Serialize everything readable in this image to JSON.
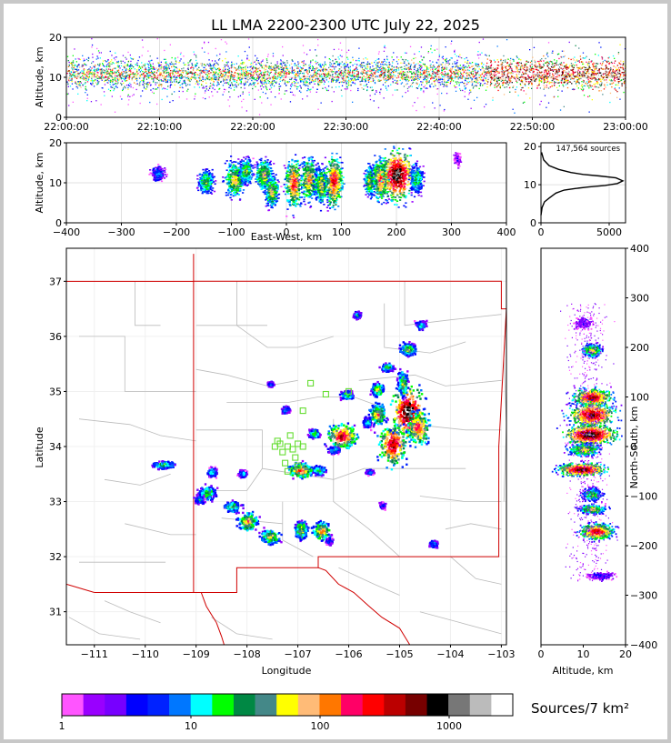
{
  "title": "LL LMA 2200-2300 UTC July 22, 2025",
  "colorbar_label": "Sources/7 km²",
  "colors": {
    "colorbar": [
      "#ff55ff",
      "#9900ff",
      "#7700ff",
      "#0000ff",
      "#0022ff",
      "#0077ff",
      "#00ffff",
      "#00ff00",
      "#008844",
      "#448888",
      "#ffff00",
      "#ffbb77",
      "#ff7700",
      "#ff0066",
      "#ff0000",
      "#bb0000",
      "#770000",
      "#000000",
      "#777777",
      "#bbbbbb",
      "#ffffff"
    ],
    "map_boundary": "#d00000",
    "county": "#bbbbbb",
    "station": "#66dd33"
  },
  "chart_data": [
    {
      "id": "time-height",
      "type": "scatter",
      "xlabel": "",
      "ylabel": "Altitude, km",
      "xticks": [
        "22:00:00",
        "22:10:00",
        "22:20:00",
        "22:30:00",
        "22:40:00",
        "22:50:00",
        "23:00:00"
      ],
      "xlim_minutes": [
        0,
        60
      ],
      "ylim": [
        0,
        20
      ],
      "yticks": [
        0,
        10,
        20
      ],
      "grid": true
    },
    {
      "id": "ew-altitude",
      "type": "heatmap",
      "xlabel": "East-West, km",
      "ylabel": "Altitude, km",
      "xlim": [
        -400,
        400
      ],
      "xticks": [
        -400,
        -300,
        -200,
        -100,
        0,
        100,
        200,
        300,
        400
      ],
      "ylim": [
        0,
        20
      ],
      "yticks": [
        0,
        10,
        20
      ],
      "cells": [
        {
          "x": -235,
          "y": 12.5,
          "sx": 8,
          "sy": 1.2,
          "w": 0.3
        },
        {
          "x": -148,
          "y": 10.5,
          "sx": 10,
          "sy": 2,
          "w": 0.5
        },
        {
          "x": -95,
          "y": 11,
          "sx": 12,
          "sy": 3,
          "w": 0.6
        },
        {
          "x": -75,
          "y": 13,
          "sx": 8,
          "sy": 2,
          "w": 0.55
        },
        {
          "x": -42,
          "y": 12,
          "sx": 10,
          "sy": 2.5,
          "w": 0.6
        },
        {
          "x": -28,
          "y": 8,
          "sx": 8,
          "sy": 2.5,
          "w": 0.6
        },
        {
          "x": 12,
          "y": 10,
          "sx": 10,
          "sy": 4,
          "w": 0.75
        },
        {
          "x": 40,
          "y": 11,
          "sx": 10,
          "sy": 3.5,
          "w": 0.65
        },
        {
          "x": 62,
          "y": 9.5,
          "sx": 8,
          "sy": 3,
          "w": 0.6
        },
        {
          "x": 85,
          "y": 10.5,
          "sx": 10,
          "sy": 4,
          "w": 0.8
        },
        {
          "x": 150,
          "y": 10.5,
          "sx": 6,
          "sy": 2.5,
          "w": 0.55
        },
        {
          "x": 170,
          "y": 11,
          "sx": 10,
          "sy": 3.5,
          "w": 0.7
        },
        {
          "x": 200,
          "y": 12,
          "sx": 18,
          "sy": 4,
          "w": 1.0
        },
        {
          "x": 235,
          "y": 11,
          "sx": 8,
          "sy": 2.5,
          "w": 0.45
        },
        {
          "x": 310,
          "y": 16,
          "sx": 4,
          "sy": 1,
          "w": 0.12
        }
      ]
    },
    {
      "id": "altitude-histogram",
      "type": "line",
      "annotation": "147,564 sources",
      "xlim": [
        0,
        6200
      ],
      "xticks": [
        0,
        5000
      ],
      "ylim": [
        0,
        21
      ],
      "yticks": [
        0,
        10,
        20
      ],
      "x": [
        0,
        80,
        250,
        600,
        900,
        1100,
        1400,
        1700,
        2500,
        3500,
        4700,
        5600,
        6000,
        5500,
        4300,
        3100,
        2200,
        1300,
        600,
        200,
        40
      ],
      "y": [
        2.0,
        4.0,
        5.5,
        6.5,
        7.3,
        7.8,
        8.2,
        8.6,
        9.0,
        9.4,
        9.8,
        10.3,
        11.0,
        11.8,
        12.3,
        12.7,
        13.2,
        14.0,
        15.0,
        16.5,
        18.5
      ]
    },
    {
      "id": "plan-view",
      "type": "heatmap",
      "xlabel": "Longitude",
      "ylabel": "Latitude",
      "xlim": [
        -111.55,
        -102.9
      ],
      "xticks": [
        -111,
        -110,
        -109,
        -108,
        -107,
        -106,
        -105,
        -104,
        -103
      ],
      "ylim": [
        30.4,
        37.6
      ],
      "yticks": [
        31,
        32,
        33,
        34,
        35,
        36,
        37
      ],
      "cells": [
        {
          "x": -109.65,
          "y": 33.68,
          "sx": 0.15,
          "sy": 0.04,
          "w": 0.45
        },
        {
          "x": -108.8,
          "y": 33.18,
          "sx": 0.1,
          "sy": 0.08,
          "w": 0.5
        },
        {
          "x": -108.95,
          "y": 33.05,
          "sx": 0.06,
          "sy": 0.05,
          "w": 0.35
        },
        {
          "x": -108.3,
          "y": 32.92,
          "sx": 0.1,
          "sy": 0.06,
          "w": 0.5
        },
        {
          "x": -108.0,
          "y": 32.65,
          "sx": 0.12,
          "sy": 0.1,
          "w": 0.65
        },
        {
          "x": -107.55,
          "y": 32.38,
          "sx": 0.12,
          "sy": 0.08,
          "w": 0.6
        },
        {
          "x": -106.95,
          "y": 32.5,
          "sx": 0.08,
          "sy": 0.1,
          "w": 0.6
        },
        {
          "x": -106.55,
          "y": 32.48,
          "sx": 0.1,
          "sy": 0.1,
          "w": 0.7
        },
        {
          "x": -106.95,
          "y": 33.58,
          "sx": 0.15,
          "sy": 0.08,
          "w": 0.75
        },
        {
          "x": -106.6,
          "y": 33.58,
          "sx": 0.08,
          "sy": 0.05,
          "w": 0.5
        },
        {
          "x": -106.3,
          "y": 33.95,
          "sx": 0.07,
          "sy": 0.04,
          "w": 0.4
        },
        {
          "x": -106.7,
          "y": 34.25,
          "sx": 0.06,
          "sy": 0.05,
          "w": 0.5
        },
        {
          "x": -106.15,
          "y": 34.2,
          "sx": 0.18,
          "sy": 0.13,
          "w": 0.85
        },
        {
          "x": -106.05,
          "y": 34.95,
          "sx": 0.08,
          "sy": 0.05,
          "w": 0.45
        },
        {
          "x": -105.65,
          "y": 34.45,
          "sx": 0.05,
          "sy": 0.06,
          "w": 0.4
        },
        {
          "x": -105.45,
          "y": 34.6,
          "sx": 0.1,
          "sy": 0.12,
          "w": 0.65
        },
        {
          "x": -105.45,
          "y": 35.05,
          "sx": 0.07,
          "sy": 0.07,
          "w": 0.6
        },
        {
          "x": -105.15,
          "y": 34.05,
          "sx": 0.18,
          "sy": 0.25,
          "w": 0.85
        },
        {
          "x": -104.85,
          "y": 34.65,
          "sx": 0.2,
          "sy": 0.3,
          "w": 1.0
        },
        {
          "x": -104.65,
          "y": 34.35,
          "sx": 0.15,
          "sy": 0.2,
          "w": 0.75
        },
        {
          "x": -104.95,
          "y": 35.15,
          "sx": 0.06,
          "sy": 0.15,
          "w": 0.55
        },
        {
          "x": -105.25,
          "y": 35.45,
          "sx": 0.08,
          "sy": 0.05,
          "w": 0.45
        },
        {
          "x": -104.85,
          "y": 35.78,
          "sx": 0.1,
          "sy": 0.07,
          "w": 0.55
        },
        {
          "x": -104.6,
          "y": 36.22,
          "sx": 0.06,
          "sy": 0.05,
          "w": 0.4
        },
        {
          "x": -105.85,
          "y": 36.4,
          "sx": 0.05,
          "sy": 0.04,
          "w": 0.35
        },
        {
          "x": -107.25,
          "y": 34.68,
          "sx": 0.05,
          "sy": 0.04,
          "w": 0.35
        },
        {
          "x": -107.55,
          "y": 35.15,
          "sx": 0.04,
          "sy": 0.03,
          "w": 0.25
        },
        {
          "x": -108.1,
          "y": 33.52,
          "sx": 0.05,
          "sy": 0.04,
          "w": 0.35
        },
        {
          "x": -108.7,
          "y": 33.55,
          "sx": 0.06,
          "sy": 0.05,
          "w": 0.4
        },
        {
          "x": -104.35,
          "y": 32.25,
          "sx": 0.05,
          "sy": 0.04,
          "w": 0.35
        },
        {
          "x": -105.6,
          "y": 33.55,
          "sx": 0.05,
          "sy": 0.03,
          "w": 0.3
        },
        {
          "x": -105.35,
          "y": 32.95,
          "sx": 0.03,
          "sy": 0.04,
          "w": 0.25
        },
        {
          "x": -106.4,
          "y": 32.3,
          "sx": 0.04,
          "sy": 0.04,
          "w": 0.25
        }
      ],
      "stations": [
        [
          -106.75,
          35.15
        ],
        [
          -106.45,
          34.95
        ],
        [
          -106.0,
          35.0
        ],
        [
          -106.9,
          34.65
        ],
        [
          -107.15,
          34.2
        ],
        [
          -107.35,
          34.05
        ],
        [
          -107.45,
          34.0
        ],
        [
          -107.2,
          34.0
        ],
        [
          -107.1,
          33.95
        ],
        [
          -107.3,
          33.9
        ],
        [
          -107.05,
          33.8
        ],
        [
          -107.25,
          33.7
        ],
        [
          -107.0,
          33.65
        ],
        [
          -107.2,
          33.55
        ],
        [
          -107.0,
          34.05
        ],
        [
          -106.9,
          34.0
        ],
        [
          -107.4,
          34.1
        ]
      ]
    },
    {
      "id": "altitude-ns",
      "type": "heatmap",
      "xlabel": "Altitude, km",
      "ylabel": "North-South, km",
      "xlim": [
        0,
        20
      ],
      "xticks": [
        0,
        10,
        20
      ],
      "ylim": [
        -400,
        400
      ],
      "yticks": [
        -400,
        -300,
        -200,
        -100,
        0,
        100,
        200,
        300,
        400
      ],
      "cells": [
        {
          "x": 12,
          "y": 195,
          "sx": 1.5,
          "sy": 8,
          "w": 0.6
        },
        {
          "x": 12,
          "y": 100,
          "sx": 3,
          "sy": 12,
          "w": 0.85
        },
        {
          "x": 12,
          "y": 65,
          "sx": 3.5,
          "sy": 15,
          "w": 0.9
        },
        {
          "x": 11.5,
          "y": 25,
          "sx": 4,
          "sy": 12,
          "w": 1.0
        },
        {
          "x": 10,
          "y": -5,
          "sx": 2.5,
          "sy": 8,
          "w": 0.6
        },
        {
          "x": 9.5,
          "y": -45,
          "sx": 3.5,
          "sy": 8,
          "w": 0.95
        },
        {
          "x": 12,
          "y": -95,
          "sx": 1.5,
          "sy": 8,
          "w": 0.5
        },
        {
          "x": 12,
          "y": -125,
          "sx": 2,
          "sy": 6,
          "w": 0.6
        },
        {
          "x": 13,
          "y": -170,
          "sx": 2.5,
          "sy": 10,
          "w": 0.85
        },
        {
          "x": 14,
          "y": -260,
          "sx": 2,
          "sy": 5,
          "w": 0.2
        },
        {
          "x": 10,
          "y": 250,
          "sx": 1.5,
          "sy": 8,
          "w": 0.15
        }
      ]
    }
  ],
  "colorbar": {
    "ticks": [
      "1",
      "10",
      "100",
      "1000"
    ]
  }
}
